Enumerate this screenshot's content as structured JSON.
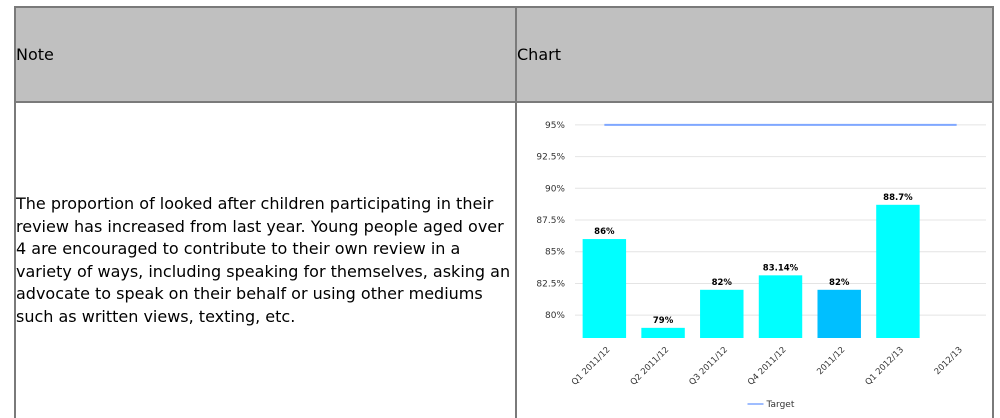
{
  "table": {
    "headers": {
      "note": "Note",
      "chart": "Chart"
    },
    "note_text": "The proportion of looked after children participating in their review has increased from last year. Young people aged over 4 are encouraged to contribute to their own review in a variety of ways, including speaking for themselves, asking an advocate to speak on their behalf or using other mediums such as written views, texting, etc."
  },
  "chart_data": {
    "type": "bar",
    "categories": [
      "Q1 2011/12",
      "Q2 2011/12",
      "Q3 2011/12",
      "Q4 2011/12",
      "2011/12",
      "Q1 2012/13",
      "2012/13"
    ],
    "values": [
      86,
      79,
      82,
      83.14,
      82,
      88.7,
      null
    ],
    "data_labels": [
      "86%",
      "79%",
      "82%",
      "83.14%",
      "82%",
      "88.7%",
      ""
    ],
    "bar_colors": [
      "#00ffff",
      "#00ffff",
      "#00ffff",
      "#00ffff",
      "#00bfff",
      "#00ffff",
      "#00ffff"
    ],
    "yticks": [
      80,
      82.5,
      85,
      87.5,
      90,
      92.5,
      95
    ],
    "ytick_labels": [
      "80%",
      "82.5%",
      "85%",
      "87.5%",
      "90%",
      "92.5%",
      "95%"
    ],
    "ylim": [
      78.2,
      95.7
    ],
    "target": {
      "name": "Target",
      "value": 95,
      "color": "#7fa7ff"
    },
    "legend_position": "bottom",
    "grid": true,
    "title": "",
    "xlabel": "",
    "ylabel": ""
  }
}
